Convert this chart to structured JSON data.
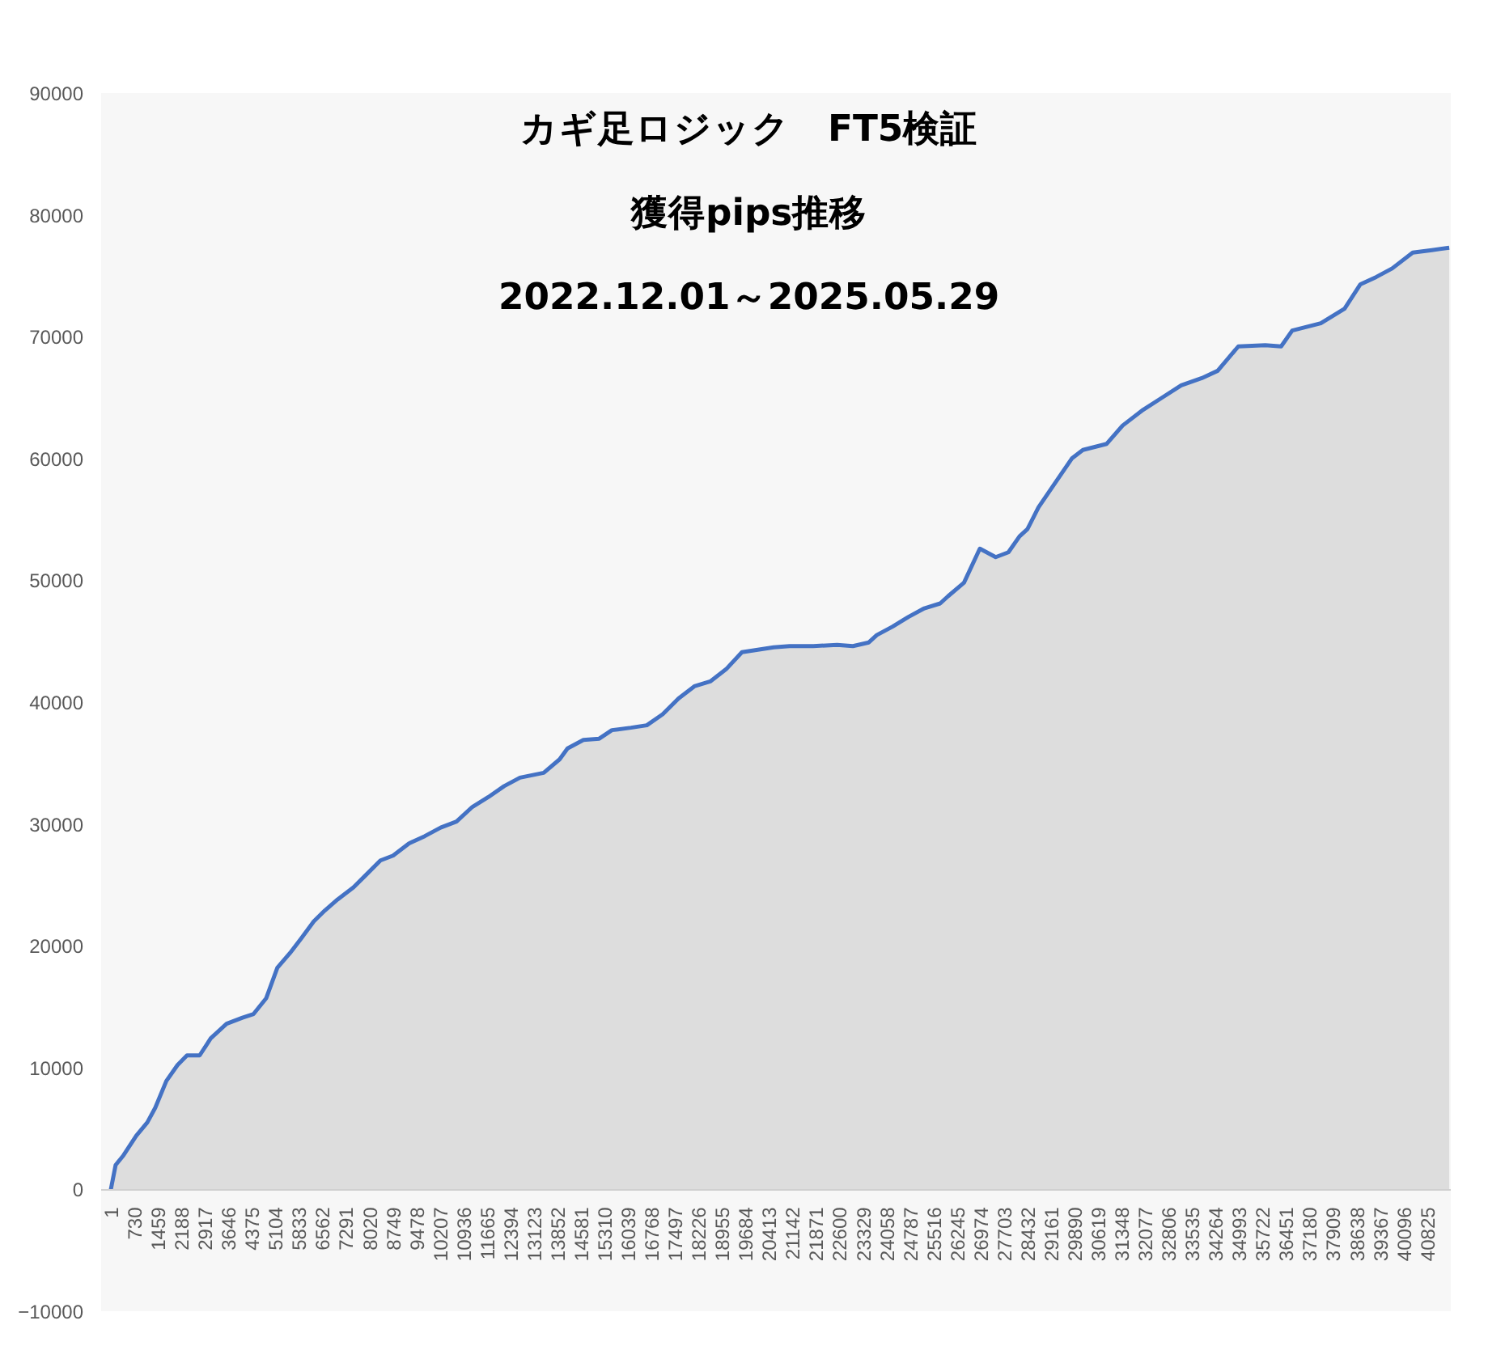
{
  "chart_data": {
    "type": "area",
    "title": "カギ足ロジック　FT5検証",
    "subtitle": "獲得pips推移\n2022.12.01～2025.05.29",
    "x": [
      1,
      149,
      394,
      788,
      1132,
      1378,
      1722,
      2067,
      2362,
      2755,
      3099,
      3591,
      4083,
      4427,
      4821,
      5165,
      5558,
      5903,
      6296,
      6640,
      7034,
      7526,
      7870,
      8362,
      8755,
      9247,
      9739,
      10230,
      10722,
      11214,
      11706,
      12198,
      12690,
      13427,
      13919,
      14165,
      14657,
      15149,
      15542,
      16132,
      16624,
      17116,
      17608,
      18099,
      18591,
      19083,
      19575,
      20067,
      20559,
      21051,
      21788,
      22526,
      23018,
      23510,
      23756,
      24248,
      24740,
      25231,
      25723,
      25969,
      26461,
      26953,
      27445,
      27839,
      28183,
      28429,
      28773,
      29265,
      29806,
      30150,
      30888,
      31380,
      32019,
      32609,
      33199,
      33839,
      34330,
      34970,
      35806,
      36298,
      36642,
      37528,
      38265,
      38757,
      39249,
      39741,
      40380,
      40971,
      41512
    ],
    "series": [
      {
        "color": "#4472c4",
        "values": [
          0,
          2000,
          2800,
          4400,
          5500,
          6700,
          8900,
          10200,
          11000,
          11000,
          12400,
          13600,
          14100,
          14400,
          15700,
          18200,
          19400,
          20600,
          22000,
          22900,
          23800,
          24800,
          25700,
          27000,
          27400,
          28400,
          29000,
          29700,
          30200,
          31400,
          32200,
          33100,
          33800,
          34200,
          35300,
          36200,
          36900,
          37000,
          37700,
          37900,
          38100,
          39000,
          40300,
          41300,
          41700,
          42700,
          44100,
          44300,
          44500,
          44600,
          44600,
          44700,
          44600,
          44900,
          45500,
          46200,
          47000,
          47700,
          48100,
          48700,
          49800,
          52600,
          51900,
          52300,
          53600,
          54200,
          56000,
          57900,
          60000,
          60700,
          61200,
          62700,
          64000,
          65000,
          66000,
          66600,
          67200,
          69200,
          69300,
          69200,
          70500,
          71100,
          72300,
          74300,
          74900,
          75600,
          76900,
          77100,
          77300
        ]
      }
    ],
    "xlim": [
      -300,
      41560
    ],
    "ylim": [
      -10000,
      90000
    ],
    "xticks": [
      1,
      730,
      1459,
      2188,
      2917,
      3646,
      4375,
      5104,
      5833,
      6562,
      7291,
      8020,
      8749,
      9478,
      10207,
      10936,
      11665,
      12394,
      13123,
      13852,
      14581,
      15310,
      16039,
      16768,
      17497,
      18226,
      18955,
      19684,
      20413,
      21142,
      21871,
      22600,
      23329,
      24058,
      24787,
      25516,
      26245,
      26974,
      27703,
      28432,
      29161,
      29890,
      30619,
      31348,
      32077,
      32806,
      33535,
      34264,
      34993,
      35722,
      36451,
      37180,
      37909,
      38638,
      39367,
      40096,
      40825
    ],
    "yticks": [
      -10000,
      0,
      10000,
      20000,
      30000,
      40000,
      50000,
      60000,
      70000,
      80000,
      90000
    ]
  }
}
